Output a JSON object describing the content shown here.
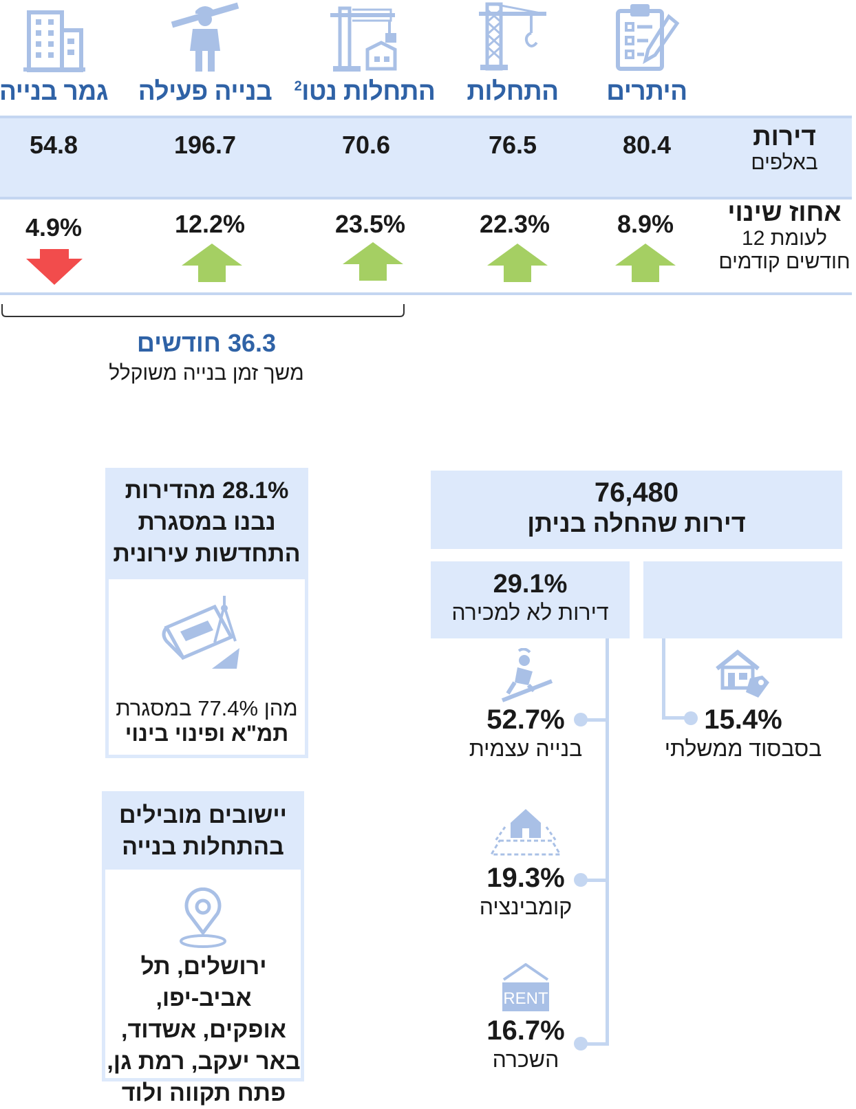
{
  "colors": {
    "accent_blue": "#2f62a6",
    "light_band": "#dde9fb",
    "band_border": "#c4d6f1",
    "up_arrow": "#a5cf63",
    "down_arrow": "#f24c4c"
  },
  "columns": [
    {
      "key": "permits",
      "label": "היתרים",
      "icon": "clipboard-pencil-icon",
      "value": "80.4",
      "change": "8.9%",
      "direction": "up"
    },
    {
      "key": "starts",
      "label": "התחלות",
      "icon": "tower-crane-icon",
      "value": "76.5",
      "change": "22.3%",
      "direction": "up"
    },
    {
      "key": "net_starts",
      "label": "התחלות נטו",
      "label_sup": "2",
      "icon": "crane-building-icon",
      "value": "70.6",
      "change": "23.5%",
      "direction": "up"
    },
    {
      "key": "active",
      "label": "בנייה פעילה",
      "icon": "construction-worker-icon",
      "value": "196.7",
      "change": "12.2%",
      "direction": "up"
    },
    {
      "key": "completed",
      "label": "גמר בנייה",
      "icon": "office-building-icon",
      "value": "54.8",
      "change": "4.9%",
      "direction": "down"
    }
  ],
  "rows": {
    "units": {
      "title": "דירות",
      "subtitle": "באלפים"
    },
    "change": {
      "title": "אחוז שינוי",
      "subtitle1": "לעומת 12",
      "subtitle2": "חודשים קודמים"
    }
  },
  "duration": {
    "value": "36.3 חודשים",
    "label": "משך זמן בנייה משוקלל"
  },
  "starts_box": {
    "value": "76,480",
    "label": "דירות שהחלה בניתן"
  },
  "not_for_sale": {
    "value": "29.1%",
    "label": "דירות לא למכירה"
  },
  "gov_subsidized": {
    "value": "15.4%",
    "label": "בסבסוד ממשלתי",
    "icon": "house-price-tag-icon"
  },
  "breakdown": [
    {
      "value": "52.7%",
      "label": "בנייה עצמית",
      "icon": "roofer-worker-icon"
    },
    {
      "value": "19.3%",
      "label": "קומבינציה",
      "icon": "house-with-lot-icon"
    },
    {
      "value": "16.7%",
      "label": "השכרה",
      "icon": "rent-sign-icon",
      "sign_text": "RENT"
    }
  ],
  "urban_renewal": {
    "line1": "28.1% מהדירות",
    "line2": "נבנו במסגרת",
    "line3": "התחדשות עירונית",
    "note1": "מהן 77.4% במסגרת",
    "note2": "תמ\"א ופינוי בינוי",
    "icon": "blueprint-compass-icon"
  },
  "leading_cities": {
    "title1": "יישובים מובילים",
    "title2": "בהתחלות בנייה",
    "icon": "location-pin-icon",
    "line1": "ירושלים, תל אביב-יפו,",
    "line2": "אופקים, אשדוד,",
    "line3": "באר יעקב, רמת גן,",
    "line4": "פתח תקווה ולוד"
  }
}
